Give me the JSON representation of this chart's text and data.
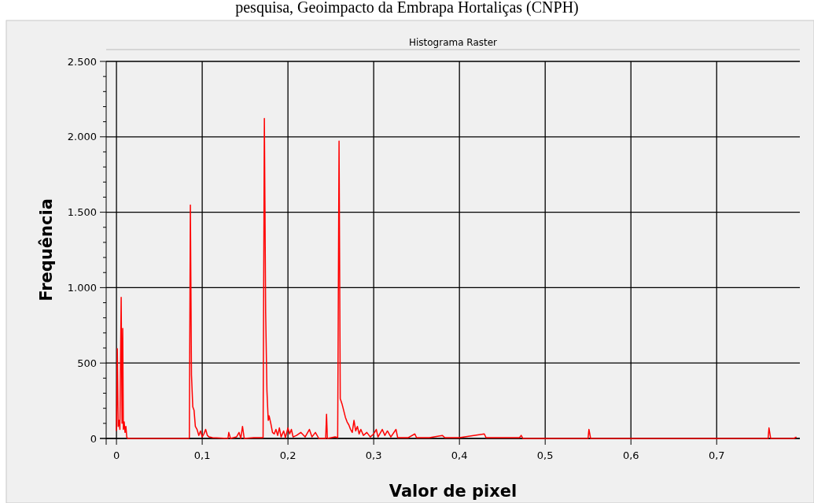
{
  "chart_data": {
    "type": "line",
    "title": "Histograma Raster",
    "xlabel": "Valor de pixel",
    "ylabel": "Frequência",
    "annotations": [
      "pesquisa, Geoimpacto da Embrapa Hortaliças (CNPH)"
    ],
    "xlim": [
      -0.012,
      0.797
    ],
    "xticks": [
      0,
      {
        "value": 0.1,
        "label": "0,1"
      },
      {
        "value": 0.2,
        "label": "0,2"
      },
      {
        "value": 0.3,
        "label": "0,3"
      },
      {
        "value": 0.4,
        "label": "0,4"
      },
      {
        "value": 0.5,
        "label": "0,5"
      },
      {
        "value": 0.6,
        "label": "0,6"
      },
      {
        "value": 0.7,
        "label": "0,7"
      }
    ],
    "ylim": [
      0,
      2500
    ],
    "yticks": [
      0,
      {
        "value": 100,
        "label": null
      },
      {
        "value": 200,
        "label": null
      },
      {
        "value": 300,
        "label": null
      },
      {
        "value": 400,
        "label": null
      },
      500,
      {
        "value": 600,
        "label": null
      },
      {
        "value": 700,
        "label": null
      },
      {
        "value": 800,
        "label": null
      },
      {
        "value": 900,
        "label": null
      },
      {
        "value": 1000,
        "label": "1.000"
      },
      {
        "value": 1100,
        "label": null
      },
      {
        "value": 1200,
        "label": null
      },
      {
        "value": 1300,
        "label": null
      },
      {
        "value": 1400,
        "label": null
      },
      {
        "value": 1500,
        "label": "1.500"
      },
      {
        "value": 1600,
        "label": null
      },
      {
        "value": 1700,
        "label": null
      },
      {
        "value": 1800,
        "label": null
      },
      {
        "value": 1900,
        "label": null
      },
      {
        "value": 2000,
        "label": "2.000"
      },
      {
        "value": 2100,
        "label": null
      },
      {
        "value": 2200,
        "label": null
      },
      {
        "value": 2300,
        "label": null
      },
      {
        "value": 2400,
        "label": null
      },
      {
        "value": 2500,
        "label": "2.500"
      }
    ],
    "grid": true,
    "marker": "none",
    "line_style": "solid",
    "series": [
      {
        "color": "#ff0000",
        "x": [
          0.0,
          0.001,
          0.002,
          0.003,
          0.004,
          0.0055,
          0.0065,
          0.0073,
          0.008,
          0.009,
          0.01,
          0.011,
          0.012,
          0.013,
          0.084,
          0.085,
          0.0862,
          0.0875,
          0.089,
          0.0905,
          0.092,
          0.094,
          0.096,
          0.098,
          0.1,
          0.102,
          0.104,
          0.106,
          0.108,
          0.112,
          0.13,
          0.131,
          0.133,
          0.14,
          0.143,
          0.145,
          0.147,
          0.149,
          0.16,
          0.171,
          0.1725,
          0.174,
          0.1755,
          0.177,
          0.178,
          0.18,
          0.182,
          0.184,
          0.186,
          0.188,
          0.19,
          0.192,
          0.195,
          0.197,
          0.2,
          0.202,
          0.204,
          0.206,
          0.21,
          0.215,
          0.22,
          0.225,
          0.228,
          0.232,
          0.236,
          0.244,
          0.245,
          0.246,
          0.255,
          0.258,
          0.2596,
          0.261,
          0.263,
          0.265,
          0.267,
          0.269,
          0.271,
          0.273,
          0.275,
          0.277,
          0.279,
          0.281,
          0.283,
          0.285,
          0.288,
          0.292,
          0.296,
          0.3,
          0.303,
          0.305,
          0.31,
          0.313,
          0.316,
          0.32,
          0.326,
          0.328,
          0.34,
          0.348,
          0.35,
          0.365,
          0.38,
          0.383,
          0.4,
          0.429,
          0.431,
          0.47,
          0.472,
          0.474,
          0.55,
          0.551,
          0.553,
          0.76,
          0.761,
          0.763,
          0.79,
          0.793
        ],
        "values": [
          50,
          595,
          80,
          120,
          60,
          935,
          100,
          730,
          60,
          110,
          40,
          80,
          10,
          0,
          0,
          5,
          1548,
          420,
          210,
          186,
          80,
          60,
          20,
          50,
          10,
          30,
          60,
          20,
          10,
          5,
          0,
          40,
          0,
          10,
          40,
          0,
          80,
          0,
          5,
          5,
          2122,
          833,
          315,
          120,
          150,
          100,
          40,
          30,
          60,
          20,
          70,
          10,
          50,
          5,
          70,
          30,
          60,
          10,
          20,
          40,
          10,
          60,
          10,
          40,
          0,
          0,
          160,
          0,
          10,
          5,
          1972,
          264,
          230,
          186,
          140,
          109,
          90,
          60,
          40,
          120,
          50,
          80,
          30,
          60,
          20,
          40,
          10,
          30,
          60,
          10,
          60,
          20,
          50,
          10,
          60,
          5,
          5,
          30,
          5,
          5,
          20,
          5,
          5,
          30,
          5,
          5,
          20,
          0,
          0,
          60,
          0,
          0,
          70,
          0,
          0,
          10
        ]
      }
    ]
  }
}
